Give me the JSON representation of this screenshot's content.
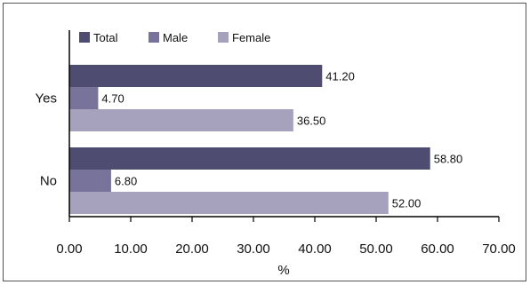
{
  "chart_data": {
    "type": "bar",
    "orientation": "horizontal",
    "categories": [
      "Yes",
      "No"
    ],
    "series": [
      {
        "name": "Total",
        "values": [
          41.2,
          58.8
        ],
        "color": "#4f4c72"
      },
      {
        "name": "Male",
        "values": [
          4.7,
          6.8
        ],
        "color": "#78739a"
      },
      {
        "name": "Female",
        "values": [
          36.5,
          52.0
        ],
        "color": "#a6a2bd"
      }
    ],
    "data_labels": [
      [
        "41.20",
        "58.80"
      ],
      [
        "4.70",
        "6.80"
      ],
      [
        "36.50",
        "52.00"
      ]
    ],
    "xlim": [
      0,
      70
    ],
    "xticks": [
      "0.00",
      "10.00",
      "20.00",
      "30.00",
      "40.00",
      "50.00",
      "60.00",
      "70.00"
    ],
    "xlabel": "%",
    "ylabel": "",
    "title": "",
    "grid": false,
    "legend_position": "top-left"
  }
}
